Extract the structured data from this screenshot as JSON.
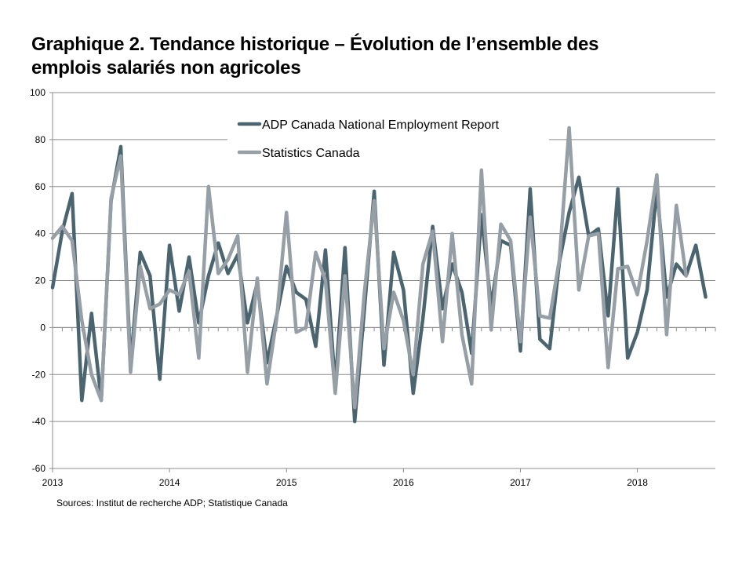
{
  "chart_data": {
    "type": "line",
    "title_line1": "Graphique 2. Tendance historique – Évolution de l’ensemble des",
    "title_line2": "emplois salariés non agricoles",
    "source": "Sources: Institut de recherche  ADP; Statistique Canada",
    "ylim": [
      -60,
      100
    ],
    "yticks": [
      -60,
      -40,
      -20,
      0,
      20,
      40,
      60,
      80,
      100
    ],
    "ytick_labels": [
      "-60",
      "-40",
      "-20",
      "0",
      "20",
      "40",
      "60",
      "80",
      "100"
    ],
    "xticks": [
      2013,
      2014,
      2015,
      2016,
      2017,
      2018
    ],
    "xtick_labels": [
      "2013",
      "2014",
      "2015",
      "2016",
      "2017",
      "2018"
    ],
    "x_start": "2013-01",
    "x_end": "2018-08",
    "grid": true,
    "legend_position": "top-center",
    "series": [
      {
        "name": "ADP Canada National Employment Report",
        "color": "#4a6470",
        "values": [
          17,
          41,
          57,
          -31,
          6,
          -31,
          54,
          77,
          -16,
          32,
          22,
          -22,
          35,
          7,
          30,
          2,
          22,
          36,
          23,
          31,
          2,
          19,
          -15,
          5,
          26,
          15,
          12,
          -8,
          33,
          -25,
          34,
          -40,
          8,
          58,
          -16,
          32,
          16,
          -28,
          4,
          43,
          8,
          27,
          15,
          -11,
          48,
          9,
          37,
          35,
          -10,
          59,
          -5,
          -9,
          28,
          49,
          64,
          39,
          42,
          5,
          59,
          -13,
          -2,
          16,
          59,
          13,
          27,
          22,
          35,
          13
        ]
      },
      {
        "name": "Statistics Canada",
        "color": "#969fa6",
        "values": [
          38,
          43,
          37,
          3,
          -20,
          -31,
          55,
          73,
          -19,
          26,
          8,
          10,
          16,
          14,
          24,
          -13,
          60,
          23,
          29,
          39,
          -19,
          21,
          -24,
          4,
          49,
          -2,
          0,
          32,
          20,
          -28,
          22,
          -34,
          15,
          54,
          -9,
          15,
          3,
          -20,
          27,
          41,
          -6,
          40,
          -3,
          -24,
          67,
          -1,
          44,
          37,
          -6,
          47,
          5,
          4,
          29,
          85,
          16,
          39,
          40,
          -17,
          25,
          26,
          14,
          37,
          65,
          -3,
          52,
          22
        ]
      }
    ]
  }
}
